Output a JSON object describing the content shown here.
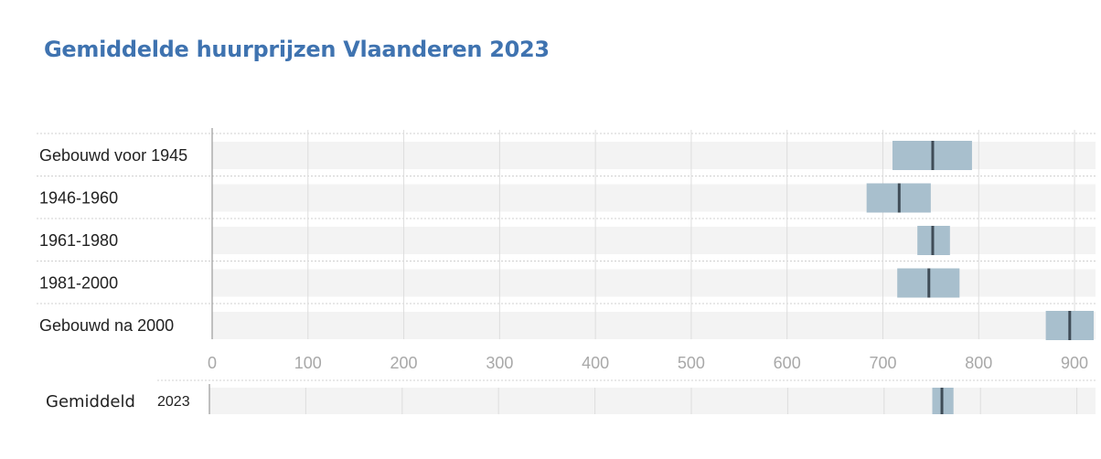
{
  "title": "Gemiddelde huurprijzen Vlaanderen 2023",
  "chart_data": {
    "type": "range-bar",
    "title": "Gemiddelde huurprijzen Vlaanderen 2023",
    "xlim": [
      0,
      920
    ],
    "ticks": [
      0,
      100,
      200,
      300,
      400,
      500,
      600,
      700,
      800,
      900
    ],
    "grid": true,
    "categories": [
      "Gebouwd voor 1945",
      "1946-1960",
      "1961-1980",
      "1981-2000",
      "Gebouwd na 2000"
    ],
    "ranges": [
      {
        "low": 710,
        "high": 793,
        "mean": 752
      },
      {
        "low": 683,
        "high": 750,
        "mean": 717
      },
      {
        "low": 736,
        "high": 770,
        "mean": 752
      },
      {
        "low": 715,
        "high": 780,
        "mean": 748
      },
      {
        "low": 870,
        "high": 920,
        "mean": 895
      }
    ],
    "summary": {
      "group_label": "Gemiddeld",
      "label": "2023",
      "low": 750,
      "high": 772,
      "mean": 760
    },
    "colors": {
      "range": "#a8bfcd",
      "marker": "#3f4c57",
      "row_band": "#f3f3f3",
      "grid": "#dddddd",
      "title": "#3f73b0"
    }
  }
}
